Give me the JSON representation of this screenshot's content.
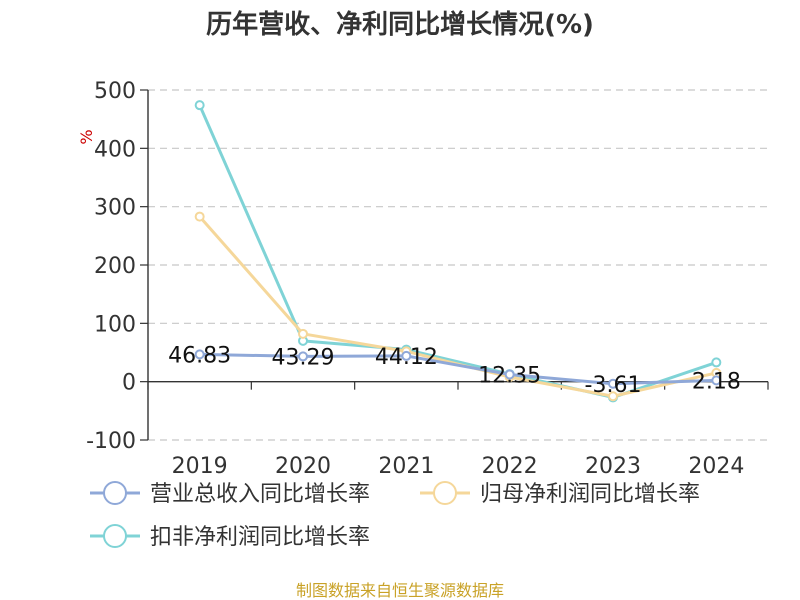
{
  "chart_data": {
    "type": "line",
    "title": "历年营收、净利同比增长情况(%)",
    "ylabel": "%",
    "ylim": [
      -100,
      500
    ],
    "yticks": [
      500,
      400,
      300,
      200,
      100,
      0,
      -100
    ],
    "categories": [
      "2019",
      "2020",
      "2021",
      "2022",
      "2023",
      "2024"
    ],
    "grid": true,
    "legend_position": "bottom",
    "series": [
      {
        "name": "营业总收入同比增长率",
        "color": "#8fa8d8",
        "values": [
          46.83,
          43.29,
          44.12,
          12.35,
          -3.61,
          2.18
        ],
        "labels": [
          "46.83",
          "43.29",
          "44.12",
          "12.35",
          "-3.61",
          "2.18"
        ]
      },
      {
        "name": "归母净利润同比增长率",
        "color": "#f5d79a",
        "values": [
          283,
          82,
          52,
          8,
          -25,
          15
        ]
      },
      {
        "name": "扣非净利润同比增长率",
        "color": "#7fd3d6",
        "values": [
          474,
          70,
          55,
          13,
          -27,
          33
        ]
      }
    ]
  },
  "source": "制图数据来自恒生聚源数据库"
}
